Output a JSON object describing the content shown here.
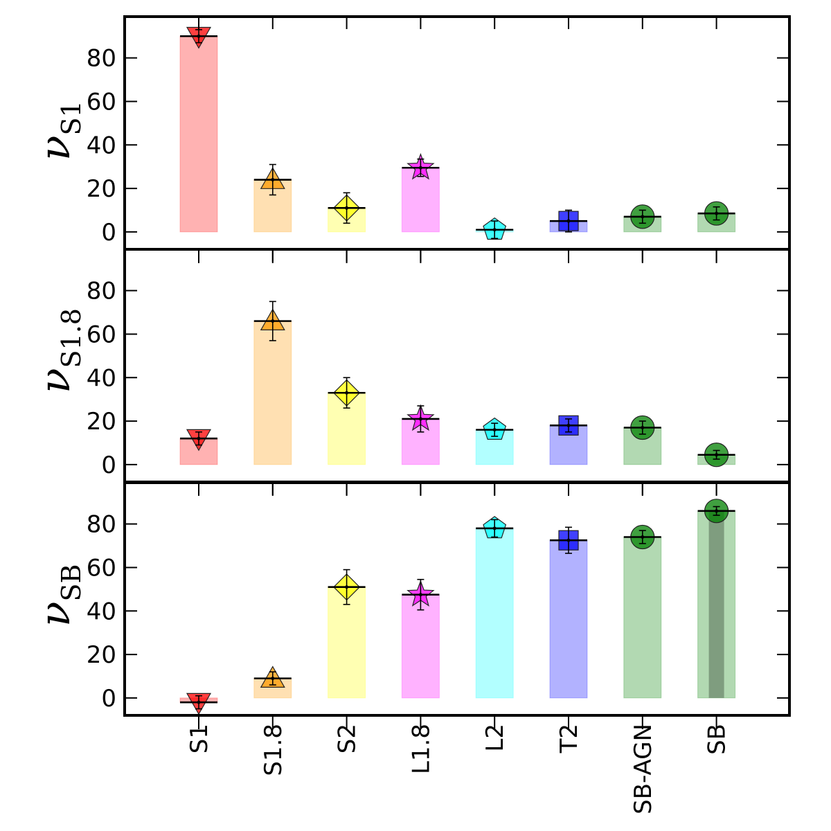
{
  "chart_data": {
    "type": "bar",
    "categories": [
      "S1",
      "S1.8",
      "S2",
      "L1.8",
      "L2",
      "T2",
      "SB-AGN",
      "SB"
    ],
    "colors": [
      "#ff0000",
      "#ff9900",
      "#ffff00",
      "#ff00ff",
      "#00ffff",
      "#0000ff",
      "#008000",
      "#008000"
    ],
    "markers": [
      "triangle-down",
      "triangle-up",
      "diamond",
      "star",
      "pentagon",
      "square",
      "circle",
      "circle"
    ],
    "yticks": [
      0,
      20,
      40,
      60,
      80
    ],
    "ylim": [
      -8,
      99
    ],
    "panels": [
      {
        "ylabel_main": "ν",
        "ylabel_sub": "S1",
        "values": [
          90,
          24,
          11,
          29.5,
          1,
          5,
          7,
          8.5
        ],
        "errors": [
          3,
          7,
          7,
          4,
          4,
          5,
          3,
          3
        ]
      },
      {
        "ylabel_main": "ν",
        "ylabel_sub": "S1.8",
        "values": [
          12,
          66,
          33,
          21,
          16,
          18,
          17,
          4.5
        ],
        "errors": [
          3,
          9,
          7,
          6,
          3,
          3,
          3,
          2
        ]
      },
      {
        "ylabel_main": "ν",
        "ylabel_sub": "SB",
        "values": [
          -2,
          9,
          51,
          47.5,
          78,
          72.5,
          74,
          86
        ],
        "errors": [
          3,
          3,
          8,
          7,
          4,
          6,
          3,
          2
        ]
      }
    ]
  }
}
